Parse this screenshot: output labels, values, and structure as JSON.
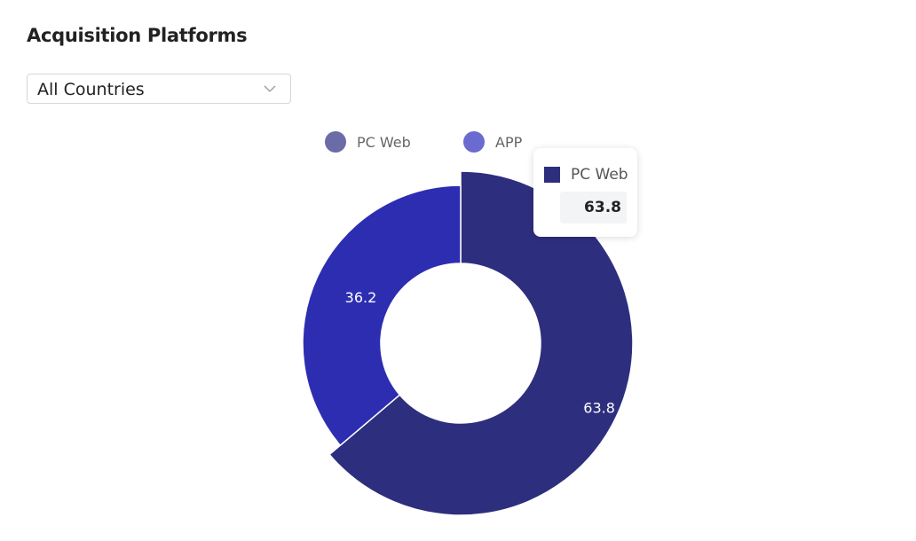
{
  "header": {
    "title": "Acquisition Platforms"
  },
  "filter": {
    "selected": "All Countries",
    "icon": "chevron-down-icon"
  },
  "chart_data": {
    "type": "pie",
    "variant": "donut",
    "title": "",
    "categories": [
      "PC Web",
      "APP"
    ],
    "values": [
      63.8,
      36.2
    ],
    "colors": [
      "#2e2e7e",
      "#2d2db2"
    ],
    "legend_colors": [
      "#6b6ba8",
      "#6a6acf"
    ],
    "legend_position": "top",
    "data_labels": [
      "63.8",
      "36.2"
    ]
  },
  "tooltip": {
    "series": "PC Web",
    "value": "63.8",
    "color": "#2e2e7e"
  }
}
